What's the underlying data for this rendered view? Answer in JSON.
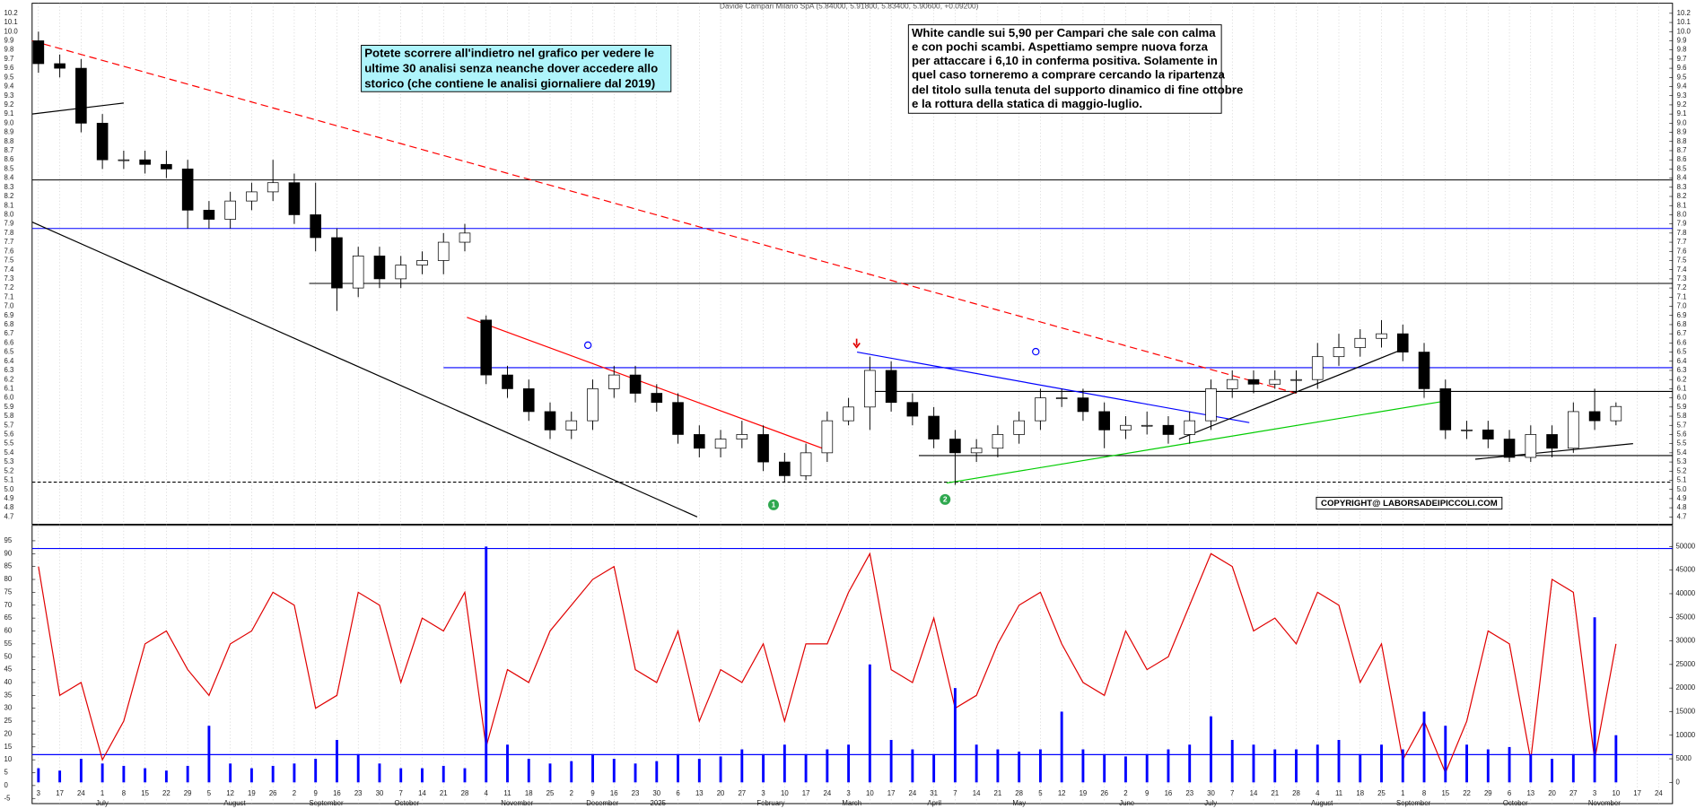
{
  "chart_data": [
    {
      "type": "candlestick",
      "title": "Davide Campari Milano SpA (5.84000, 5.91800, 5.83400, 5.90600, +0.09200)",
      "open": [
        9.9,
        9.65,
        9.6,
        9.0,
        8.6,
        8.6,
        8.55,
        8.5,
        8.05,
        7.95,
        8.15,
        8.25,
        8.35,
        8.0,
        7.75,
        7.2,
        7.55,
        7.3,
        7.45,
        7.5,
        7.7,
        6.85,
        6.25,
        6.1,
        5.85,
        5.65,
        5.75,
        6.1,
        6.25,
        6.05,
        5.95,
        5.6,
        5.45,
        5.55,
        5.6,
        5.3,
        5.15,
        5.4,
        5.75,
        5.9,
        6.3,
        5.95,
        5.8,
        5.55,
        5.4,
        5.45,
        5.6,
        5.75,
        6.0,
        6.0,
        5.85,
        5.65,
        5.7,
        5.7,
        5.6,
        5.75,
        6.1,
        6.2,
        6.15,
        6.2,
        6.2,
        6.45,
        6.55,
        6.65,
        6.7,
        6.5,
        6.1,
        5.65,
        5.65,
        5.55,
        5.35,
        5.6,
        5.45,
        5.85,
        5.75,
        null,
        null
      ],
      "high": [
        10.0,
        9.75,
        9.7,
        9.1,
        8.7,
        8.7,
        8.7,
        8.6,
        8.15,
        8.25,
        8.35,
        8.6,
        8.45,
        8.35,
        7.85,
        7.65,
        7.65,
        7.55,
        7.6,
        7.8,
        7.9,
        6.9,
        6.35,
        6.2,
        5.95,
        5.85,
        6.2,
        6.35,
        6.35,
        6.15,
        6.05,
        5.7,
        5.65,
        5.75,
        5.7,
        5.4,
        5.5,
        5.85,
        6.0,
        6.45,
        6.4,
        6.05,
        5.9,
        5.65,
        5.55,
        5.7,
        5.85,
        6.1,
        6.1,
        6.1,
        5.95,
        5.8,
        5.85,
        5.8,
        5.85,
        6.2,
        6.3,
        6.3,
        6.3,
        6.3,
        6.6,
        6.7,
        6.75,
        6.85,
        6.8,
        6.6,
        6.2,
        5.75,
        5.75,
        5.65,
        5.7,
        5.7,
        5.95,
        6.1,
        5.95,
        null,
        null
      ],
      "low": [
        9.55,
        9.5,
        8.9,
        8.5,
        8.5,
        8.45,
        8.4,
        7.85,
        7.85,
        7.85,
        8.05,
        8.15,
        7.9,
        7.6,
        6.95,
        7.1,
        7.2,
        7.2,
        7.35,
        7.35,
        7.6,
        6.15,
        6.0,
        5.75,
        5.55,
        5.55,
        5.65,
        6.0,
        5.95,
        5.85,
        5.5,
        5.35,
        5.35,
        5.45,
        5.2,
        5.08,
        5.1,
        5.3,
        5.7,
        5.65,
        5.85,
        5.7,
        5.45,
        5.05,
        5.3,
        5.35,
        5.5,
        5.65,
        5.9,
        5.75,
        5.45,
        5.55,
        5.6,
        5.5,
        5.5,
        5.65,
        6.0,
        6.05,
        6.1,
        6.05,
        6.1,
        6.35,
        6.45,
        6.55,
        6.4,
        6.0,
        5.55,
        5.55,
        5.45,
        5.3,
        5.3,
        5.35,
        5.4,
        5.65,
        5.7,
        null,
        null
      ],
      "close": [
        9.65,
        9.6,
        9.0,
        8.6,
        8.6,
        8.55,
        8.5,
        8.05,
        7.95,
        8.15,
        8.25,
        8.35,
        8.0,
        7.75,
        7.2,
        7.55,
        7.3,
        7.45,
        7.5,
        7.7,
        7.8,
        6.25,
        6.1,
        5.85,
        5.65,
        5.75,
        6.1,
        6.25,
        6.05,
        5.95,
        5.6,
        5.45,
        5.55,
        5.6,
        5.3,
        5.15,
        5.4,
        5.75,
        5.9,
        6.3,
        5.95,
        5.8,
        5.55,
        5.4,
        5.45,
        5.6,
        5.75,
        6.0,
        6.0,
        5.85,
        5.65,
        5.7,
        5.7,
        5.6,
        5.75,
        6.1,
        6.2,
        6.15,
        6.2,
        6.2,
        6.45,
        6.55,
        6.65,
        6.7,
        6.5,
        6.1,
        5.65,
        5.65,
        5.55,
        5.35,
        5.6,
        5.45,
        5.85,
        5.75,
        5.906,
        null,
        null
      ],
      "ylim": [
        4.62,
        10.31
      ],
      "yticks": [
        4.7,
        4.8,
        4.9,
        {
          "value": 5,
          "label": "5.0"
        },
        5.1,
        5.2,
        5.3,
        5.4,
        5.5,
        5.6,
        5.7,
        5.8,
        5.9,
        {
          "value": 6,
          "label": "6.0"
        },
        6.1,
        6.2,
        6.3,
        6.4,
        6.5,
        6.6,
        6.7,
        6.8,
        6.9,
        {
          "value": 7,
          "label": "7.0"
        },
        7.1,
        7.2,
        7.3,
        7.4,
        7.5,
        7.6,
        7.7,
        7.8,
        7.9,
        {
          "value": 8,
          "label": "8.0"
        },
        8.1,
        8.2,
        8.3,
        8.4,
        8.5,
        8.6,
        8.7,
        8.8,
        8.9,
        {
          "value": 9,
          "label": "9.0"
        },
        9.1,
        9.2,
        9.3,
        9.4,
        9.5,
        9.6,
        9.7,
        9.8,
        9.9,
        {
          "value": 10,
          "label": "10.0"
        },
        10.1,
        10.2
      ],
      "grid": true,
      "levels": [
        {
          "value": 8.38,
          "color": "#000000",
          "start": 0
        },
        {
          "value": 7.85,
          "color": "#0000ff",
          "start": 0
        },
        {
          "value": 7.25,
          "color": "#000000",
          "start": 12.7
        },
        {
          "value": 6.33,
          "color": "#0000ff",
          "start": 19
        },
        {
          "value": 6.07,
          "color": "#000000",
          "start": 38.8
        },
        {
          "value": 5.37,
          "color": "#000000",
          "start": 41.3
        },
        {
          "value": 5.08,
          "color": "#000000",
          "start": 0,
          "dashed": true
        }
      ],
      "trendlines": [
        {
          "x": [
            0,
            59
          ],
          "y": [
            9.9,
            6.05
          ],
          "color": "#ff0000",
          "dashed": true
        },
        {
          "x": [
            0,
            30.9
          ],
          "y": [
            7.92,
            4.7
          ],
          "color": "#000000"
        },
        {
          "x": [
            0,
            4
          ],
          "y": [
            9.1,
            9.22
          ],
          "color": "#000000"
        },
        {
          "x": [
            20.1,
            37
          ],
          "y": [
            6.88,
            5.43
          ],
          "color": "#ff0000"
        },
        {
          "x": [
            38.4,
            56.8
          ],
          "y": [
            6.5,
            5.73
          ],
          "color": "#0000ff"
        },
        {
          "x": [
            42.6,
            66.1
          ],
          "y": [
            5.07,
            5.97
          ],
          "color": "#00cc00"
        },
        {
          "x": [
            53.5,
            64.1
          ],
          "y": [
            5.55,
            6.54
          ],
          "color": "#000000"
        },
        {
          "x": [
            67.4,
            74.8
          ],
          "y": [
            5.33,
            5.5
          ],
          "color": "#000000"
        }
      ],
      "notes": [
        {
          "lines": [
            "Potete scorrere all'indietro nel grafico per vedere le",
            "ultime 30 analisi senza neanche dover accedere allo",
            "storico (che contiene le analisi giornaliere dal 2019)"
          ]
        },
        {
          "lines": [
            "White candle sui 5,90 per Campari che sale con calma",
            "e con pochi scambi. Aspettiamo sempre nuova forza",
            "per attaccare i 6,10 in conferma positiva. Solamente in",
            "quel caso torneremo a comprare cercando la ripartenza",
            "del titolo sulla tenuta del supporto dinamico di fine ottobre",
            "e la rottura della statica di maggio-luglio."
          ]
        }
      ],
      "copyright": "COPYRIGHT@ LABORSADEIPICCOLI.COM",
      "markers": [
        "1",
        "2"
      ]
    },
    {
      "type": "line",
      "categories": [
        "3",
        "17",
        "24",
        "1",
        "8",
        "15",
        "22",
        "29",
        "5",
        "12",
        "19",
        "26",
        "2",
        "9",
        "16",
        "23",
        "30",
        "7",
        "14",
        "21",
        "28",
        "4",
        "11",
        "18",
        "25",
        "2",
        "9",
        "16",
        "23",
        "30",
        "6",
        "13",
        "20",
        "27",
        "3",
        "10",
        "17",
        "24",
        "3",
        "10",
        "17",
        "24",
        "31",
        "7",
        "14",
        "21",
        "28",
        "5",
        "12",
        "19",
        "26",
        "2",
        "9",
        "16",
        "23",
        "30",
        "7",
        "14",
        "21",
        "28",
        "4",
        "11",
        "18",
        "25",
        "1",
        "8",
        "15",
        "22",
        "29",
        "6",
        "13",
        "20",
        "27",
        "3",
        "10",
        "17",
        "24"
      ],
      "month_labels": [
        {
          "label": "July",
          "category": 3
        },
        {
          "label": "August",
          "category": 9
        },
        {
          "label": "September",
          "category": 13
        },
        {
          "label": "October",
          "category": 17
        },
        {
          "label": "November",
          "category": 22
        },
        {
          "label": "December",
          "category": 26
        },
        {
          "label": "2025",
          "category": 29
        },
        {
          "label": "February",
          "category": 34
        },
        {
          "label": "March",
          "category": 38
        },
        {
          "label": "April",
          "category": 42
        },
        {
          "label": "May",
          "category": 46
        },
        {
          "label": "June",
          "category": 51
        },
        {
          "label": "July",
          "category": 55
        },
        {
          "label": "August",
          "category": 60
        },
        {
          "label": "September",
          "category": 64
        },
        {
          "label": "October",
          "category": 69
        },
        {
          "label": "November",
          "category": 73
        }
      ],
      "series": [
        {
          "color": "#e00000",
          "values": [
            85,
            35,
            40,
            10,
            25,
            55,
            60,
            45,
            35,
            55,
            60,
            75,
            70,
            30,
            35,
            75,
            70,
            40,
            65,
            60,
            75,
            15,
            45,
            40,
            60,
            70,
            80,
            85,
            45,
            40,
            60,
            25,
            45,
            40,
            55,
            25,
            55,
            55,
            75,
            90,
            45,
            40,
            65,
            30,
            35,
            55,
            70,
            75,
            55,
            40,
            35,
            60,
            45,
            50,
            70,
            90,
            85,
            60,
            65,
            55,
            75,
            70,
            40,
            55,
            10,
            25,
            5,
            25,
            60,
            55,
            10,
            80,
            75,
            10,
            55,
            null,
            null
          ]
        },
        {
          "type": "bar",
          "axis": "y2",
          "color": "#0000ff",
          "values": [
            3000,
            2500,
            5000,
            4000,
            3500,
            3000,
            2500,
            3500,
            12000,
            4000,
            3000,
            3500,
            4000,
            5000,
            9000,
            6000,
            4000,
            3000,
            3000,
            3500,
            3000,
            50000,
            8000,
            5000,
            4000,
            4500,
            6000,
            5000,
            4000,
            4500,
            6000,
            5000,
            5500,
            7000,
            6000,
            8000,
            6000,
            7000,
            8000,
            25000,
            9000,
            7000,
            6000,
            20000,
            8000,
            7000,
            6500,
            7000,
            15000,
            7000,
            6000,
            5500,
            6000,
            7000,
            8000,
            14000,
            9000,
            8000,
            7000,
            7000,
            8000,
            9000,
            6000,
            8000,
            7000,
            15000,
            12000,
            8000,
            7000,
            7500,
            6000,
            5000,
            6000,
            35000,
            10000,
            null,
            null
          ]
        }
      ],
      "ylim": [
        -7,
        101
      ],
      "yticks": [
        -5,
        0,
        5,
        10,
        15,
        20,
        25,
        30,
        35,
        40,
        45,
        50,
        55,
        60,
        65,
        70,
        75,
        80,
        85,
        90,
        95
      ],
      "y2lim": [
        -4500,
        54500
      ],
      "y2ticks": [
        0,
        5000,
        10000,
        15000,
        20000,
        25000,
        30000,
        35000,
        40000,
        45000,
        50000
      ],
      "levels": [
        92,
        12
      ],
      "grid": true
    }
  ]
}
